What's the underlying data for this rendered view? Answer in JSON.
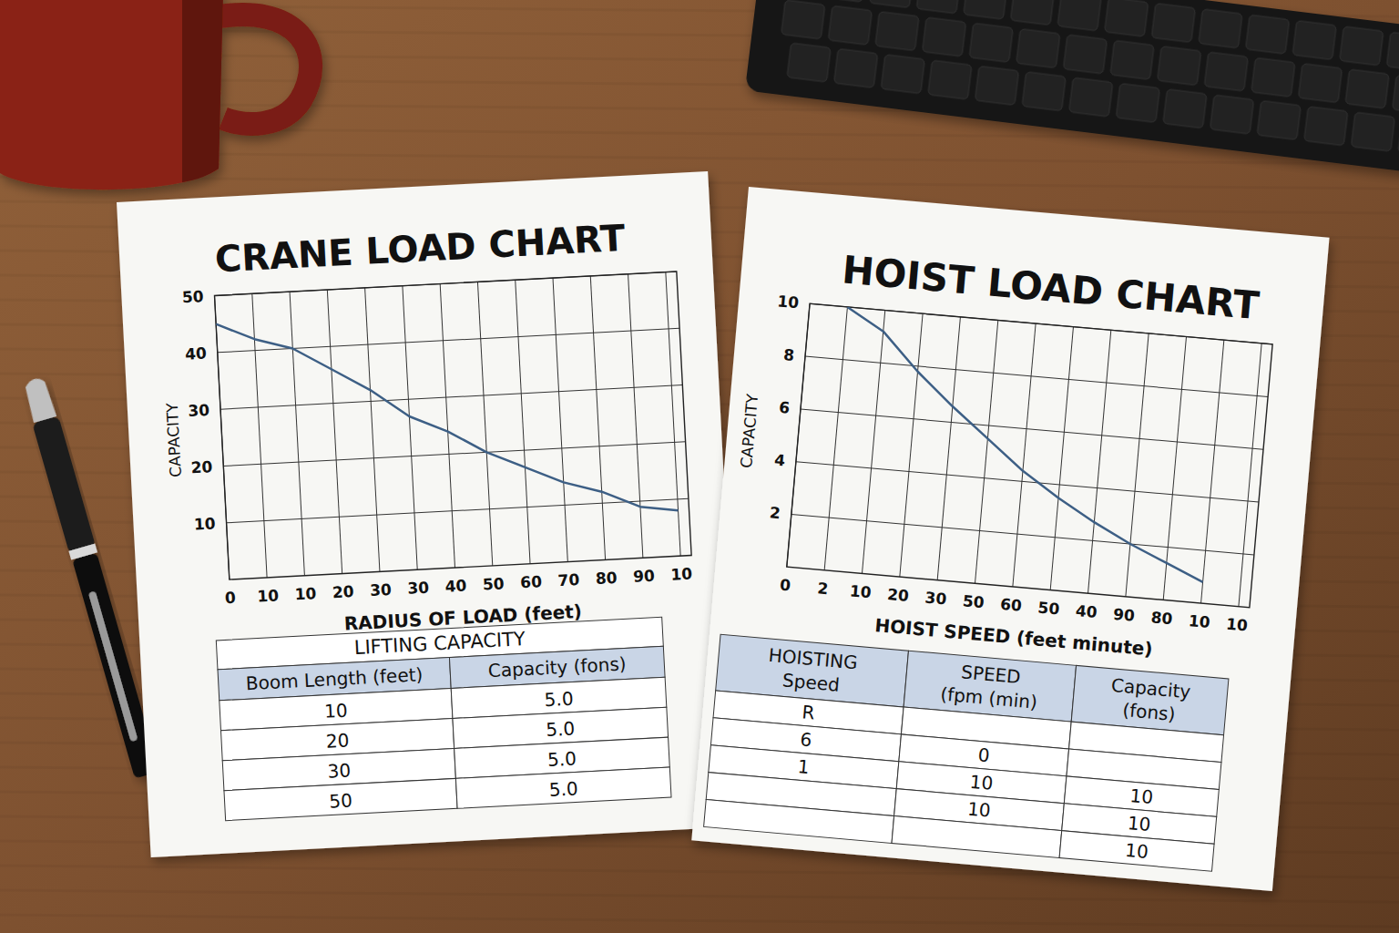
{
  "chart_data": [
    {
      "type": "line",
      "title": "CRANE LOAD CHART",
      "xlabel": "RADIUS OF LOAD  (feet)",
      "ylabel": "CAPACITY",
      "categories": [
        "0",
        "10",
        "10",
        "20",
        "30",
        "30",
        "40",
        "50",
        "60",
        "70",
        "80",
        "90",
        "10"
      ],
      "values": [
        45,
        42,
        40,
        36,
        32,
        27,
        24,
        20,
        17,
        14,
        12,
        9,
        8
      ],
      "color": "#3d5f85",
      "ylim": [
        0,
        50
      ],
      "yticks": [
        10,
        20,
        30,
        40,
        50
      ],
      "grid": true
    },
    {
      "type": "line",
      "title": "HOIST LOAD CHART",
      "xlabel": "HOIST SPEED (feet minute)",
      "ylabel": "CAPACITY",
      "categories": [
        "0",
        "2",
        "10",
        "20",
        "30",
        "50",
        "60",
        "50",
        "40",
        "90",
        "80",
        "10",
        "10"
      ],
      "values": [
        null,
        10,
        9.2,
        7.8,
        6.6,
        5.5,
        4.4,
        3.5,
        2.7,
        2.0,
        1.4,
        0.8,
        null
      ],
      "color": "#3d5f85",
      "ylim": [
        0,
        10
      ],
      "yticks": [
        2,
        4,
        6,
        8,
        10
      ],
      "grid": true
    }
  ],
  "tables": [
    {
      "title": "LIFTING CAPACITY",
      "header": [
        [
          "Boom Length (feet)"
        ],
        [
          "Capacity (fons)"
        ]
      ],
      "rows": [
        [
          "10",
          "5.0"
        ],
        [
          "20",
          "5.0"
        ],
        [
          "30",
          "5.0"
        ],
        [
          "50",
          "5.0"
        ]
      ]
    },
    {
      "header": [
        [
          "HOISTING",
          "Speed"
        ],
        [
          "SPEED",
          "(fpm (min)"
        ],
        [
          "Capacity",
          "(fons)"
        ]
      ],
      "rows": [
        [
          "R",
          null,
          null
        ],
        [
          "6",
          "0",
          null
        ],
        [
          "1",
          "10",
          "10"
        ],
        [
          null,
          "10",
          "10"
        ],
        [
          null,
          null,
          "10"
        ]
      ]
    }
  ]
}
